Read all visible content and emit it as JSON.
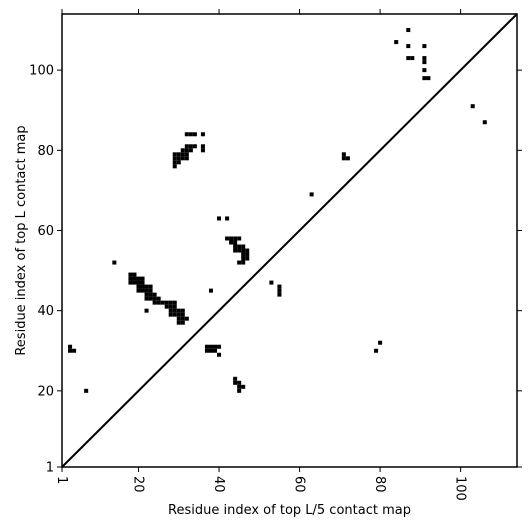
{
  "chart_data": {
    "type": "scatter",
    "xlabel": "Residue index of top L/5 contact map",
    "ylabel": "Residue index of top L contact map",
    "xlim": [
      1,
      114
    ],
    "ylim": [
      1,
      114
    ],
    "x_ticks": [
      1,
      20,
      40,
      60,
      80,
      100
    ],
    "y_ticks": [
      1,
      20,
      40,
      60,
      80,
      100
    ],
    "x_tick_labels": [
      "1",
      "20",
      "40",
      "60",
      "80",
      "100"
    ],
    "y_tick_labels": [
      "1",
      "20",
      "40",
      "60",
      "80",
      "100"
    ],
    "diagonal": true,
    "grid": false,
    "marker_color": "#000000",
    "points": [
      [
        3,
        30
      ],
      [
        3,
        31
      ],
      [
        4,
        30
      ],
      [
        7,
        20
      ],
      [
        14,
        52
      ],
      [
        18,
        47
      ],
      [
        18,
        48
      ],
      [
        18,
        49
      ],
      [
        19,
        47
      ],
      [
        19,
        48
      ],
      [
        19,
        49
      ],
      [
        20,
        45
      ],
      [
        20,
        46
      ],
      [
        20,
        47
      ],
      [
        20,
        48
      ],
      [
        21,
        45
      ],
      [
        21,
        46
      ],
      [
        21,
        47
      ],
      [
        21,
        48
      ],
      [
        22,
        40
      ],
      [
        22,
        43
      ],
      [
        22,
        44
      ],
      [
        22,
        45
      ],
      [
        22,
        46
      ],
      [
        23,
        43
      ],
      [
        23,
        44
      ],
      [
        23,
        45
      ],
      [
        23,
        46
      ],
      [
        24,
        42
      ],
      [
        24,
        43
      ],
      [
        24,
        44
      ],
      [
        25,
        42
      ],
      [
        25,
        43
      ],
      [
        26,
        42
      ],
      [
        27,
        41
      ],
      [
        27,
        42
      ],
      [
        28,
        39
      ],
      [
        28,
        40
      ],
      [
        28,
        41
      ],
      [
        28,
        42
      ],
      [
        29,
        39
      ],
      [
        29,
        40
      ],
      [
        29,
        41
      ],
      [
        29,
        42
      ],
      [
        30,
        37
      ],
      [
        30,
        38
      ],
      [
        30,
        39
      ],
      [
        30,
        40
      ],
      [
        31,
        37
      ],
      [
        31,
        38
      ],
      [
        31,
        39
      ],
      [
        31,
        40
      ],
      [
        32,
        38
      ],
      [
        29,
        76
      ],
      [
        29,
        77
      ],
      [
        29,
        78
      ],
      [
        29,
        79
      ],
      [
        30,
        77
      ],
      [
        30,
        78
      ],
      [
        30,
        79
      ],
      [
        31,
        78
      ],
      [
        31,
        79
      ],
      [
        31,
        80
      ],
      [
        32,
        78
      ],
      [
        32,
        79
      ],
      [
        32,
        80
      ],
      [
        32,
        81
      ],
      [
        33,
        80
      ],
      [
        33,
        81
      ],
      [
        33,
        84
      ],
      [
        32,
        84
      ],
      [
        34,
        81
      ],
      [
        34,
        84
      ],
      [
        36,
        80
      ],
      [
        36,
        81
      ],
      [
        36,
        84
      ],
      [
        37,
        30
      ],
      [
        37,
        31
      ],
      [
        38,
        30
      ],
      [
        38,
        31
      ],
      [
        39,
        30
      ],
      [
        39,
        31
      ],
      [
        40,
        29
      ],
      [
        40,
        31
      ],
      [
        38,
        45
      ],
      [
        40,
        63
      ],
      [
        42,
        63
      ],
      [
        42,
        58
      ],
      [
        43,
        57
      ],
      [
        43,
        58
      ],
      [
        44,
        55
      ],
      [
        44,
        56
      ],
      [
        44,
        57
      ],
      [
        44,
        58
      ],
      [
        45,
        52
      ],
      [
        45,
        55
      ],
      [
        45,
        56
      ],
      [
        45,
        58
      ],
      [
        46,
        52
      ],
      [
        46,
        53
      ],
      [
        46,
        54
      ],
      [
        46,
        55
      ],
      [
        46,
        56
      ],
      [
        47,
        53
      ],
      [
        47,
        54
      ],
      [
        47,
        55
      ],
      [
        44,
        22
      ],
      [
        44,
        23
      ],
      [
        45,
        20
      ],
      [
        45,
        21
      ],
      [
        45,
        22
      ],
      [
        46,
        21
      ],
      [
        53,
        47
      ],
      [
        55,
        44
      ],
      [
        55,
        45
      ],
      [
        55,
        46
      ],
      [
        63,
        69
      ],
      [
        71,
        78
      ],
      [
        71,
        79
      ],
      [
        72,
        78
      ],
      [
        79,
        30
      ],
      [
        80,
        32
      ],
      [
        84,
        107
      ],
      [
        87,
        103
      ],
      [
        87,
        106
      ],
      [
        87,
        110
      ],
      [
        88,
        103
      ],
      [
        91,
        98
      ],
      [
        91,
        100
      ],
      [
        91,
        102
      ],
      [
        91,
        103
      ],
      [
        91,
        106
      ],
      [
        92,
        98
      ],
      [
        103,
        91
      ],
      [
        106,
        87
      ]
    ]
  }
}
